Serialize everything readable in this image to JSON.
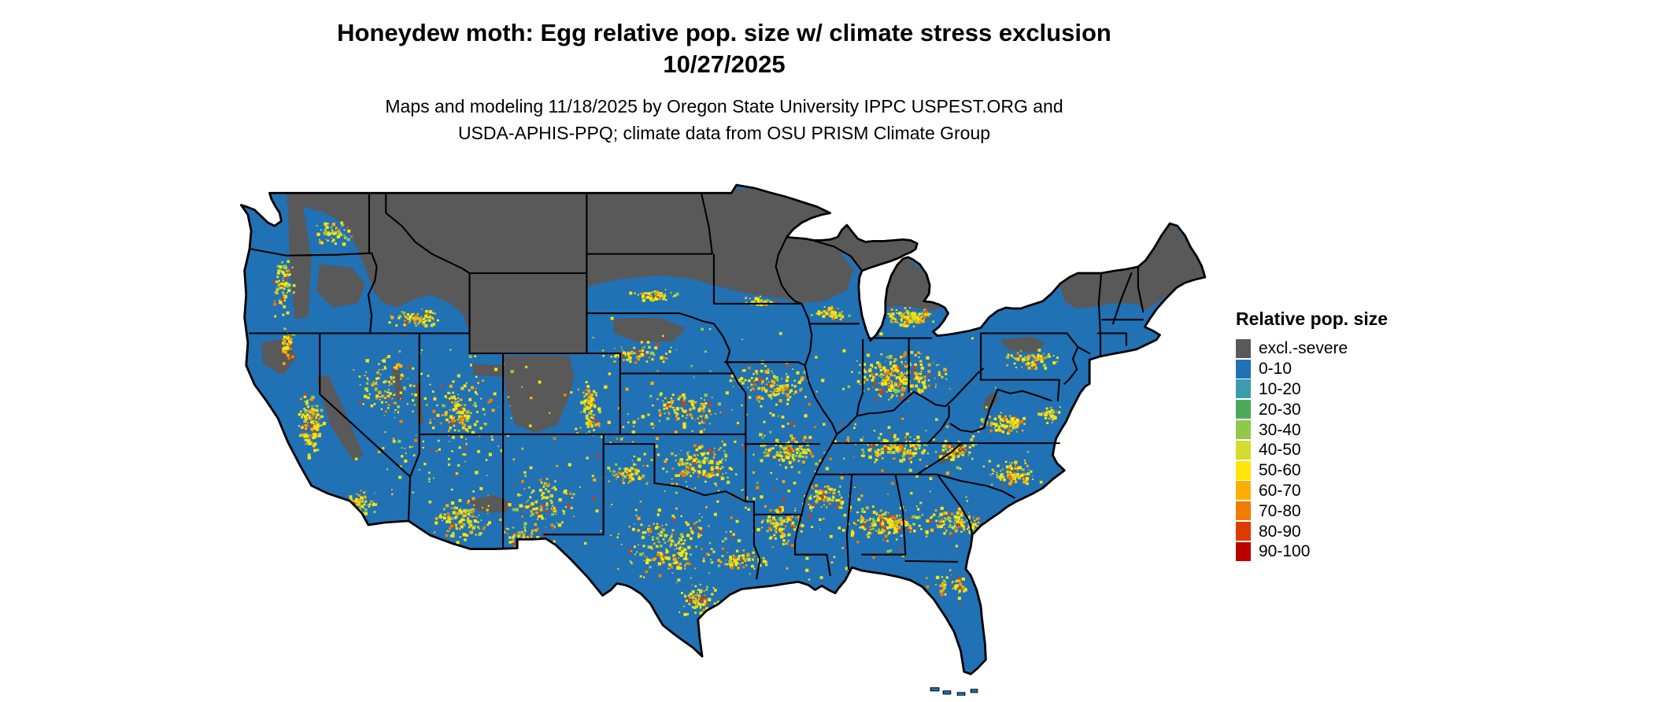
{
  "title": {
    "line1": "Honeydew moth: Egg relative pop. size w/ climate stress exclusion",
    "line2": "10/27/2025"
  },
  "subtitle": {
    "line1": "Maps and modeling 11/18/2025 by Oregon State University IPPC USPEST.ORG and",
    "line2": "USDA-APHIS-PPQ; climate data from OSU PRISM Climate Group"
  },
  "legend": {
    "title": "Relative pop. size",
    "items": [
      {
        "label": "excl.-severe",
        "color": "#595959"
      },
      {
        "label": "0-10",
        "color": "#2171B5"
      },
      {
        "label": "10-20",
        "color": "#3D9BB0"
      },
      {
        "label": "20-30",
        "color": "#4BAA5A"
      },
      {
        "label": "30-40",
        "color": "#91C84C"
      },
      {
        "label": "40-50",
        "color": "#D3DC31"
      },
      {
        "label": "50-60",
        "color": "#FFE508"
      },
      {
        "label": "60-70",
        "color": "#FFAE00"
      },
      {
        "label": "70-80",
        "color": "#F07D00"
      },
      {
        "label": "80-90",
        "color": "#DF3B00"
      },
      {
        "label": "90-100",
        "color": "#BC0000"
      }
    ]
  },
  "map_colors": {
    "base": "#2171B5",
    "excluded": "#595959",
    "outline": "#000000",
    "water": "#FFFFFF"
  }
}
